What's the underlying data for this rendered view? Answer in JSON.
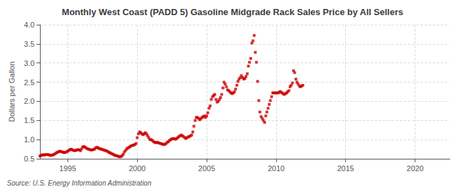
{
  "chart_data": {
    "type": "scatter",
    "title": "Monthly West Coast (PADD 5) Gasoline Midgrade Rack Sales Price by All Sellers",
    "ylabel": "Dollars per Gallon",
    "annotations": [
      "Source: U.S. Energy Information Administration"
    ],
    "color": "#cc0000",
    "marker": "square",
    "grid": true,
    "xlim": [
      1993.0,
      2022.5
    ],
    "ylim": [
      0.5,
      4.0
    ],
    "xticks": [
      1995,
      2000,
      2005,
      2010,
      2015,
      2020
    ],
    "yticks": [
      0.5,
      {
        "value": 1.0,
        "label": "1.0"
      },
      1.5,
      {
        "value": 2.0,
        "label": "2.0"
      },
      2.5,
      {
        "value": 3.0,
        "label": "3.0"
      },
      3.5,
      {
        "value": 4.0,
        "label": "4.0"
      }
    ],
    "x": [
      1993.0,
      1993.08,
      1993.17,
      1993.25,
      1993.33,
      1993.42,
      1993.5,
      1993.58,
      1993.67,
      1993.75,
      1993.83,
      1993.92,
      1994.0,
      1994.08,
      1994.17,
      1994.25,
      1994.33,
      1994.42,
      1994.5,
      1994.58,
      1994.67,
      1994.75,
      1994.83,
      1994.92,
      1995.0,
      1995.08,
      1995.17,
      1995.25,
      1995.33,
      1995.42,
      1995.5,
      1995.58,
      1995.67,
      1995.75,
      1995.83,
      1995.92,
      1996.0,
      1996.08,
      1996.17,
      1996.25,
      1996.33,
      1996.42,
      1996.5,
      1996.58,
      1996.67,
      1996.75,
      1996.83,
      1996.92,
      1997.0,
      1997.08,
      1997.17,
      1997.25,
      1997.33,
      1997.42,
      1997.5,
      1997.58,
      1997.67,
      1997.75,
      1997.83,
      1997.92,
      1998.0,
      1998.08,
      1998.17,
      1998.25,
      1998.33,
      1998.42,
      1998.5,
      1998.58,
      1998.67,
      1998.75,
      1998.83,
      1998.92,
      1999.0,
      1999.08,
      1999.17,
      1999.25,
      1999.33,
      1999.42,
      1999.5,
      1999.58,
      1999.67,
      1999.75,
      1999.83,
      1999.92,
      2000.0,
      2000.08,
      2000.17,
      2000.25,
      2000.33,
      2000.42,
      2000.5,
      2000.58,
      2000.67,
      2000.75,
      2000.83,
      2000.92,
      2001.0,
      2001.08,
      2001.17,
      2001.25,
      2001.33,
      2001.42,
      2001.5,
      2001.58,
      2001.67,
      2001.75,
      2001.83,
      2001.92,
      2002.0,
      2002.08,
      2002.17,
      2002.25,
      2002.33,
      2002.42,
      2002.5,
      2002.58,
      2002.67,
      2002.75,
      2002.83,
      2002.92,
      2003.0,
      2003.08,
      2003.17,
      2003.25,
      2003.33,
      2003.42,
      2003.5,
      2003.58,
      2003.67,
      2003.75,
      2003.83,
      2003.92,
      2004.0,
      2004.08,
      2004.17,
      2004.25,
      2004.33,
      2004.42,
      2004.5,
      2004.58,
      2004.67,
      2004.75,
      2004.83,
      2004.92,
      2005.0,
      2005.08,
      2005.17,
      2005.25,
      2005.33,
      2005.42,
      2005.5,
      2005.58,
      2005.67,
      2005.75,
      2005.83,
      2005.92,
      2006.0,
      2006.08,
      2006.17,
      2006.25,
      2006.33,
      2006.42,
      2006.5,
      2006.58,
      2006.67,
      2006.75,
      2006.83,
      2006.92,
      2007.0,
      2007.08,
      2007.17,
      2007.25,
      2007.33,
      2007.42,
      2007.5,
      2007.58,
      2007.67,
      2007.75,
      2007.83,
      2007.92,
      2008.0,
      2008.08,
      2008.17,
      2008.25,
      2008.33,
      2008.42,
      2008.5,
      2008.58,
      2008.67,
      2008.75,
      2008.83,
      2008.92,
      2009.0,
      2009.08,
      2009.17,
      2009.25,
      2009.33,
      2009.42,
      2009.5,
      2009.58,
      2009.67,
      2009.75,
      2009.83,
      2009.92,
      2010.0,
      2010.08,
      2010.17,
      2010.25,
      2010.33,
      2010.42,
      2010.5,
      2010.58,
      2010.67,
      2010.75,
      2010.83,
      2010.92,
      2011.0,
      2011.08,
      2011.17,
      2011.25,
      2011.33,
      2011.42,
      2011.5,
      2011.58,
      2011.67,
      2011.75,
      2011.83,
      2011.92
    ],
    "values": [
      0.57,
      0.59,
      0.6,
      0.6,
      0.6,
      0.61,
      0.61,
      0.61,
      0.6,
      0.59,
      0.59,
      0.6,
      0.61,
      0.63,
      0.65,
      0.67,
      0.68,
      0.7,
      0.69,
      0.68,
      0.67,
      0.66,
      0.67,
      0.68,
      0.7,
      0.72,
      0.74,
      0.75,
      0.73,
      0.72,
      0.71,
      0.72,
      0.73,
      0.74,
      0.73,
      0.71,
      0.76,
      0.81,
      0.82,
      0.8,
      0.78,
      0.76,
      0.75,
      0.74,
      0.73,
      0.73,
      0.74,
      0.75,
      0.78,
      0.8,
      0.79,
      0.77,
      0.76,
      0.75,
      0.74,
      0.73,
      0.72,
      0.71,
      0.7,
      0.68,
      0.66,
      0.65,
      0.63,
      0.62,
      0.6,
      0.59,
      0.58,
      0.57,
      0.56,
      0.55,
      0.56,
      0.58,
      0.62,
      0.68,
      0.72,
      0.76,
      0.78,
      0.8,
      0.82,
      0.84,
      0.85,
      0.86,
      0.87,
      0.9,
      1.05,
      1.15,
      1.2,
      1.18,
      1.15,
      1.13,
      1.15,
      1.18,
      1.15,
      1.1,
      1.05,
      1.0,
      1.0,
      0.98,
      0.95,
      0.93,
      0.92,
      0.93,
      0.92,
      0.91,
      0.9,
      0.89,
      0.88,
      0.87,
      0.88,
      0.9,
      0.93,
      0.95,
      0.98,
      1.0,
      1.02,
      1.03,
      1.02,
      1.01,
      1.03,
      1.05,
      1.08,
      1.1,
      1.12,
      1.1,
      1.08,
      1.05,
      1.03,
      1.05,
      1.07,
      1.08,
      1.1,
      1.12,
      1.2,
      1.35,
      1.5,
      1.58,
      1.58,
      1.55,
      1.52,
      1.55,
      1.58,
      1.6,
      1.62,
      1.58,
      1.62,
      1.7,
      1.82,
      1.88,
      2.05,
      2.12,
      2.15,
      2.18,
      2.05,
      1.98,
      2.0,
      2.05,
      2.1,
      2.18,
      2.35,
      2.5,
      2.45,
      2.38,
      2.3,
      2.28,
      2.25,
      2.22,
      2.2,
      2.22,
      2.25,
      2.32,
      2.42,
      2.52,
      2.58,
      2.62,
      2.67,
      2.62,
      2.58,
      2.6,
      2.65,
      2.72,
      2.92,
      3.02,
      3.12,
      3.52,
      3.58,
      3.72,
      3.28,
      3.02,
      2.52,
      2.02,
      1.72,
      1.6,
      1.55,
      1.5,
      1.45,
      1.62,
      1.72,
      1.82,
      1.92,
      2.02,
      2.12,
      2.22,
      2.22,
      2.22,
      2.22,
      2.22,
      2.22,
      2.25,
      2.25,
      2.22,
      2.2,
      2.18,
      2.2,
      2.22,
      2.25,
      2.28,
      2.38,
      2.42,
      2.48,
      2.8,
      2.75,
      2.58,
      2.5,
      2.45,
      2.4,
      2.38,
      2.4,
      2.42
    ]
  }
}
